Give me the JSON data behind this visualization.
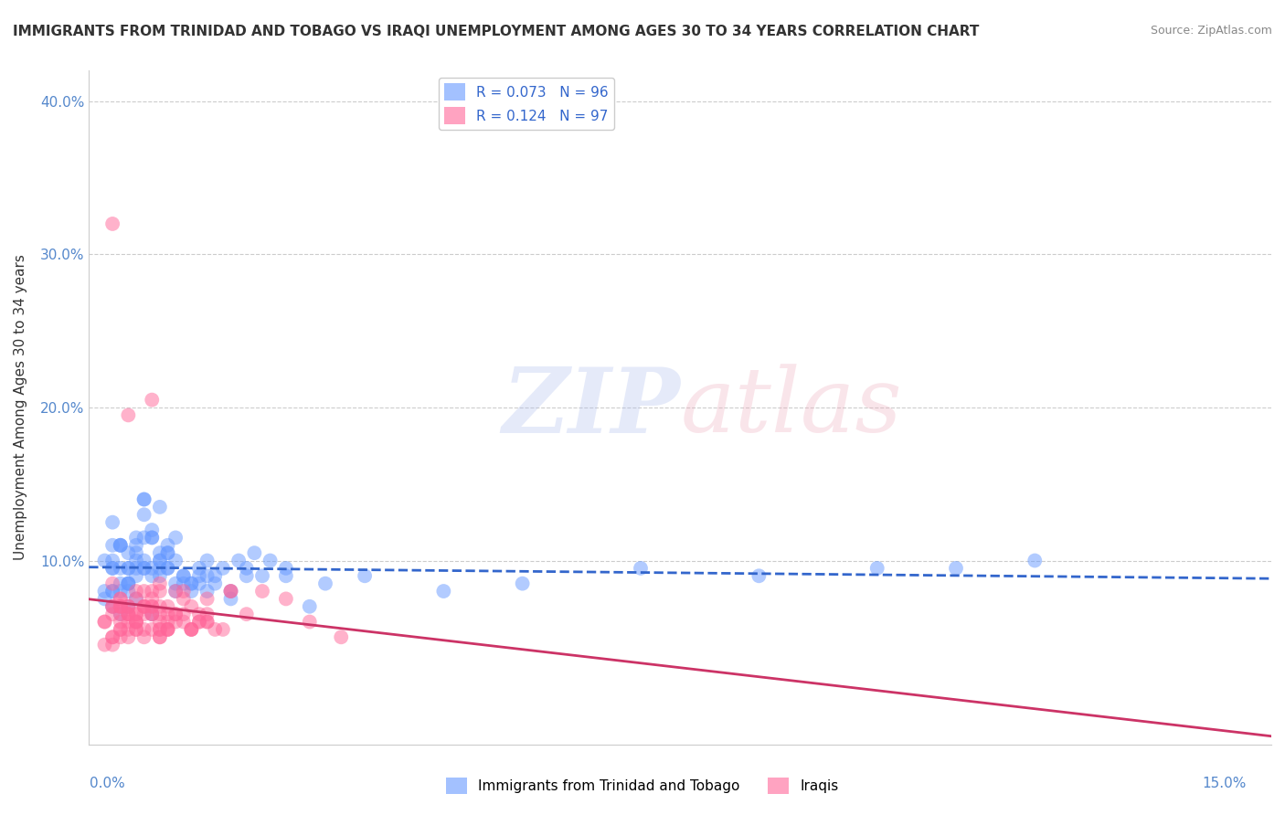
{
  "title": "IMMIGRANTS FROM TRINIDAD AND TOBAGO VS IRAQI UNEMPLOYMENT AMONG AGES 30 TO 34 YEARS CORRELATION CHART",
  "source": "Source: ZipAtlas.com",
  "ylabel": "Unemployment Among Ages 30 to 34 years",
  "xlim": [
    0.0,
    15.0
  ],
  "ylim": [
    -2.0,
    42.0
  ],
  "yticks": [
    0.0,
    10.0,
    20.0,
    30.0,
    40.0
  ],
  "ytick_labels": [
    "",
    "10.0%",
    "20.0%",
    "30.0%",
    "40.0%"
  ],
  "legend1_label": "R = 0.073   N = 96",
  "legend2_label": "R = 0.124   N = 97",
  "series1_color": "#6699ff",
  "series2_color": "#ff6699",
  "trend1_color": "#3366cc",
  "trend2_color": "#cc3366",
  "blue_scatter_x": [
    0.3,
    0.5,
    0.8,
    1.0,
    1.2,
    0.4,
    0.6,
    0.9,
    1.5,
    2.0,
    0.2,
    0.7,
    1.1,
    1.3,
    0.5,
    0.6,
    0.8,
    1.0,
    1.4,
    0.3,
    0.4,
    0.5,
    0.7,
    0.9,
    1.1,
    2.5,
    3.0,
    0.2,
    0.3,
    0.6,
    0.8,
    1.2,
    1.6,
    0.4,
    0.5,
    0.9,
    1.3,
    2.0,
    0.3,
    0.6,
    0.7,
    1.0,
    1.5,
    1.8,
    2.2,
    0.4,
    0.8,
    1.1,
    1.4,
    2.8,
    4.5,
    5.5,
    7.0,
    8.5,
    10.0,
    11.0,
    12.0,
    0.3,
    0.5,
    0.7,
    1.2,
    1.8,
    0.4,
    0.6,
    0.9,
    1.3,
    0.8,
    0.5,
    0.3,
    1.0,
    2.3,
    0.7,
    0.4,
    1.6,
    0.9,
    2.1,
    1.7,
    0.6,
    1.4,
    0.5,
    0.3,
    0.8,
    1.1,
    1.9,
    0.4,
    0.7,
    3.5,
    0.2,
    0.6,
    1.0,
    2.5,
    0.3,
    0.5,
    0.9,
    1.5,
    0.7
  ],
  "blue_scatter_y": [
    8.0,
    9.5,
    12.0,
    10.5,
    8.5,
    11.0,
    7.5,
    9.0,
    8.0,
    9.5,
    10.0,
    13.0,
    11.5,
    8.0,
    7.0,
    9.0,
    6.5,
    10.5,
    8.5,
    9.5,
    11.0,
    8.0,
    9.5,
    10.0,
    8.0,
    9.5,
    8.5,
    7.5,
    12.5,
    10.0,
    11.5,
    9.0,
    8.5,
    6.5,
    10.5,
    9.5,
    8.5,
    9.0,
    7.0,
    11.5,
    14.0,
    9.5,
    10.0,
    7.5,
    9.0,
    8.5,
    11.5,
    10.0,
    9.5,
    7.0,
    8.0,
    8.5,
    9.5,
    9.0,
    9.5,
    9.5,
    10.0,
    8.0,
    9.5,
    14.0,
    9.0,
    8.0,
    11.0,
    9.5,
    10.0,
    8.5,
    9.0,
    8.5,
    9.5,
    11.0,
    10.0,
    9.5,
    8.0,
    9.0,
    13.5,
    10.5,
    9.5,
    11.0,
    9.0,
    8.5,
    10.0,
    9.5,
    8.5,
    10.0,
    9.5,
    11.5,
    9.0,
    8.0,
    10.5,
    9.5,
    9.0,
    11.0,
    8.5,
    10.5,
    9.0,
    10.0
  ],
  "pink_scatter_x": [
    0.2,
    0.4,
    0.6,
    0.8,
    1.0,
    0.3,
    0.5,
    0.7,
    0.9,
    1.1,
    0.4,
    0.6,
    1.2,
    1.5,
    0.3,
    0.5,
    0.8,
    1.3,
    0.2,
    0.4,
    0.7,
    1.0,
    1.4,
    0.3,
    0.6,
    0.9,
    0.5,
    0.8,
    1.2,
    0.4,
    0.7,
    1.1,
    0.3,
    0.6,
    0.9,
    1.6,
    2.0,
    0.4,
    0.5,
    0.8,
    1.3,
    0.2,
    0.6,
    1.0,
    1.8,
    0.3,
    0.5,
    0.9,
    1.4,
    2.5,
    0.7,
    1.1,
    0.4,
    0.8,
    1.5,
    0.3,
    0.6,
    1.0,
    2.2,
    0.5,
    0.9,
    1.3,
    0.4,
    0.7,
    1.2,
    1.7,
    0.3,
    0.6,
    0.9,
    1.5,
    0.5,
    0.8,
    1.0,
    0.4,
    0.7,
    1.3,
    0.6,
    0.9,
    1.1,
    2.8,
    0.4,
    0.8,
    0.5,
    1.2,
    0.3,
    0.7,
    1.4,
    0.9,
    0.6,
    1.0,
    0.5,
    1.8,
    0.8,
    1.5,
    3.2,
    0.4,
    0.9
  ],
  "pink_scatter_y": [
    6.0,
    7.5,
    5.5,
    8.0,
    7.0,
    6.5,
    5.0,
    7.0,
    6.5,
    8.0,
    5.5,
    6.0,
    7.5,
    6.0,
    5.0,
    7.0,
    6.5,
    5.5,
    4.5,
    6.0,
    7.0,
    5.5,
    6.5,
    32.0,
    6.0,
    5.0,
    19.5,
    20.5,
    6.5,
    7.0,
    5.5,
    6.0,
    4.5,
    7.5,
    6.0,
    5.5,
    6.5,
    5.0,
    6.5,
    7.0,
    5.5,
    6.0,
    5.5,
    6.5,
    8.0,
    7.0,
    6.5,
    5.0,
    6.0,
    7.5,
    8.0,
    6.5,
    5.5,
    7.0,
    6.0,
    8.5,
    6.5,
    5.5,
    8.0,
    6.0,
    7.0,
    5.5,
    7.5,
    6.5,
    6.0,
    5.5,
    7.0,
    6.0,
    8.0,
    6.5,
    5.5,
    7.5,
    6.0,
    6.5,
    5.0,
    7.0,
    8.0,
    5.5,
    6.5,
    6.0,
    7.0,
    5.5,
    6.5,
    8.0,
    5.0,
    7.0,
    6.0,
    8.5,
    6.5,
    5.5,
    7.0,
    8.0,
    6.5,
    7.5,
    5.0,
    7.0,
    5.5
  ]
}
